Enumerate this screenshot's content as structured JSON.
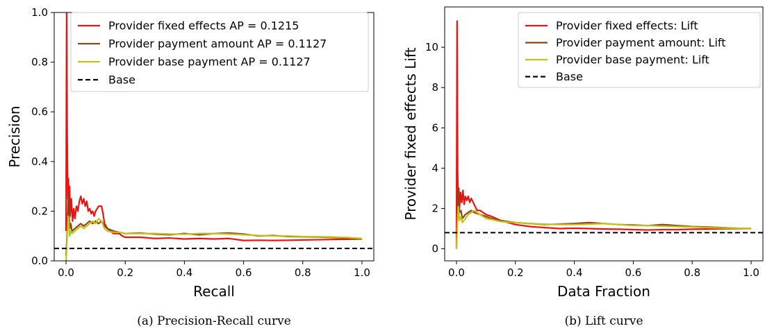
{
  "chart_data": [
    {
      "type": "line",
      "caption": "(a) Precision-Recall curve",
      "xlabel": "Recall",
      "ylabel": "Precision",
      "xlim": [
        -0.04,
        1.04
      ],
      "ylim": [
        0.0,
        1.0
      ],
      "xticks": [
        "0.0",
        "0.2",
        "0.4",
        "0.6",
        "0.8",
        "1.0"
      ],
      "xtick_values": [
        0.0,
        0.2,
        0.4,
        0.6,
        0.8,
        1.0
      ],
      "yticks": [
        "0.0",
        "0.2",
        "0.4",
        "0.6",
        "0.8",
        "1.0"
      ],
      "ytick_values": [
        0.0,
        0.2,
        0.4,
        0.6,
        0.8,
        1.0
      ],
      "legend_position": "top-right",
      "series": [
        {
          "name": "Provider fixed effects AP = 0.1215",
          "color": "#ee1111",
          "x": [
            0.0,
            0.002,
            0.004,
            0.006,
            0.008,
            0.01,
            0.012,
            0.014,
            0.018,
            0.022,
            0.026,
            0.03,
            0.035,
            0.04,
            0.045,
            0.05,
            0.055,
            0.06,
            0.065,
            0.07,
            0.075,
            0.08,
            0.085,
            0.09,
            0.095,
            0.1,
            0.105,
            0.11,
            0.115,
            0.12,
            0.125,
            0.13,
            0.14,
            0.15,
            0.16,
            0.18,
            0.19,
            0.2,
            0.25,
            0.3,
            0.35,
            0.4,
            0.45,
            0.5,
            0.55,
            0.6,
            0.65,
            0.7,
            0.75,
            0.8,
            0.85,
            0.9,
            0.95,
            1.0
          ],
          "y": [
            0.12,
            1.0,
            0.5,
            0.25,
            0.33,
            0.2,
            0.3,
            0.18,
            0.25,
            0.16,
            0.21,
            0.17,
            0.22,
            0.2,
            0.24,
            0.26,
            0.23,
            0.25,
            0.22,
            0.24,
            0.2,
            0.21,
            0.19,
            0.2,
            0.18,
            0.2,
            0.21,
            0.22,
            0.22,
            0.22,
            0.19,
            0.15,
            0.13,
            0.12,
            0.11,
            0.11,
            0.1,
            0.095,
            0.095,
            0.09,
            0.092,
            0.088,
            0.09,
            0.088,
            0.09,
            0.082,
            0.083,
            0.082,
            0.083,
            0.084,
            0.085,
            0.086,
            0.087,
            0.088
          ]
        },
        {
          "name": "Provider payment amount AP = 0.1127",
          "color": "#8b4513",
          "x": [
            0.0,
            0.004,
            0.008,
            0.012,
            0.016,
            0.02,
            0.03,
            0.04,
            0.05,
            0.06,
            0.07,
            0.08,
            0.09,
            0.1,
            0.11,
            0.12,
            0.13,
            0.14,
            0.16,
            0.18,
            0.2,
            0.25,
            0.3,
            0.35,
            0.4,
            0.45,
            0.5,
            0.55,
            0.6,
            0.65,
            0.7,
            0.75,
            0.8,
            0.85,
            0.9,
            0.95,
            1.0
          ],
          "y": [
            0.02,
            0.12,
            0.27,
            0.13,
            0.15,
            0.12,
            0.13,
            0.14,
            0.15,
            0.14,
            0.15,
            0.16,
            0.15,
            0.16,
            0.15,
            0.16,
            0.14,
            0.13,
            0.12,
            0.115,
            0.11,
            0.112,
            0.108,
            0.105,
            0.11,
            0.105,
            0.11,
            0.112,
            0.108,
            0.1,
            0.102,
            0.098,
            0.097,
            0.096,
            0.094,
            0.092,
            0.088
          ]
        },
        {
          "name": "Provider base payment AP = 0.1127",
          "color": "#c2c21a",
          "x": [
            0.0,
            0.004,
            0.008,
            0.012,
            0.016,
            0.02,
            0.03,
            0.04,
            0.05,
            0.06,
            0.07,
            0.08,
            0.09,
            0.1,
            0.11,
            0.12,
            0.13,
            0.14,
            0.16,
            0.18,
            0.2,
            0.25,
            0.3,
            0.35,
            0.4,
            0.45,
            0.5,
            0.55,
            0.6,
            0.65,
            0.7,
            0.75,
            0.8,
            0.85,
            0.9,
            0.95,
            1.0
          ],
          "y": [
            0.0,
            0.1,
            0.18,
            0.1,
            0.12,
            0.11,
            0.12,
            0.13,
            0.14,
            0.13,
            0.14,
            0.15,
            0.16,
            0.15,
            0.17,
            0.16,
            0.13,
            0.12,
            0.115,
            0.115,
            0.11,
            0.11,
            0.11,
            0.108,
            0.107,
            0.11,
            0.11,
            0.108,
            0.105,
            0.102,
            0.1,
            0.1,
            0.098,
            0.097,
            0.096,
            0.094,
            0.09
          ]
        },
        {
          "name": "Base",
          "color": "#000000",
          "dashed": true,
          "x": [
            -0.04,
            1.04
          ],
          "y": [
            0.05,
            0.05
          ]
        }
      ]
    },
    {
      "type": "line",
      "caption": "(b) Lift curve",
      "xlabel": "Data Fraction",
      "ylabel": "Provider fixed effects Lift",
      "xlim": [
        -0.04,
        1.04
      ],
      "ylim": [
        -0.6,
        12.0
      ],
      "xticks": [
        "0.0",
        "0.2",
        "0.4",
        "0.6",
        "0.8",
        "1.0"
      ],
      "xtick_values": [
        0.0,
        0.2,
        0.4,
        0.6,
        0.8,
        1.0
      ],
      "yticks": [
        "0",
        "2",
        "4",
        "6",
        "8",
        "10"
      ],
      "ytick_values": [
        0,
        2,
        4,
        6,
        8,
        10
      ],
      "legend_position": "top-right",
      "series": [
        {
          "name": "Provider fixed effects: Lift",
          "color": "#ee1111",
          "x": [
            0.0,
            0.002,
            0.004,
            0.006,
            0.008,
            0.01,
            0.014,
            0.018,
            0.022,
            0.026,
            0.03,
            0.035,
            0.04,
            0.045,
            0.05,
            0.06,
            0.07,
            0.08,
            0.1,
            0.12,
            0.15,
            0.2,
            0.25,
            0.3,
            0.35,
            0.4,
            0.45,
            0.5,
            0.55,
            0.6,
            0.65,
            0.7,
            0.75,
            0.8,
            0.85,
            0.9,
            0.95,
            1.0
          ],
          "y": [
            0.0,
            11.3,
            3.8,
            2.2,
            3.0,
            2.0,
            2.8,
            2.3,
            2.9,
            2.2,
            2.6,
            2.4,
            2.6,
            2.3,
            2.5,
            2.2,
            1.9,
            1.9,
            1.7,
            1.6,
            1.4,
            1.2,
            1.1,
            1.05,
            1.0,
            1.02,
            1.0,
            0.98,
            0.97,
            0.95,
            0.93,
            0.95,
            0.95,
            0.97,
            0.98,
            0.99,
            1.0,
            1.0
          ]
        },
        {
          "name": "Provider payment amount: Lift",
          "color": "#8b4513",
          "x": [
            0.0,
            0.003,
            0.006,
            0.01,
            0.015,
            0.02,
            0.03,
            0.04,
            0.05,
            0.06,
            0.08,
            0.1,
            0.12,
            0.15,
            0.2,
            0.25,
            0.3,
            0.35,
            0.4,
            0.45,
            0.5,
            0.55,
            0.6,
            0.65,
            0.7,
            0.75,
            0.8,
            0.85,
            0.9,
            0.95,
            1.0
          ],
          "y": [
            0.0,
            1.5,
            3.0,
            1.8,
            1.9,
            1.5,
            1.7,
            1.8,
            1.9,
            1.8,
            1.7,
            1.6,
            1.5,
            1.4,
            1.3,
            1.25,
            1.2,
            1.22,
            1.25,
            1.3,
            1.25,
            1.2,
            1.18,
            1.15,
            1.2,
            1.15,
            1.1,
            1.08,
            1.05,
            1.02,
            1.0
          ]
        },
        {
          "name": "Provider base payment: Lift",
          "color": "#c2c21a",
          "x": [
            0.0,
            0.003,
            0.006,
            0.01,
            0.015,
            0.02,
            0.03,
            0.04,
            0.05,
            0.06,
            0.08,
            0.1,
            0.12,
            0.15,
            0.2,
            0.25,
            0.3,
            0.35,
            0.4,
            0.45,
            0.5,
            0.55,
            0.6,
            0.65,
            0.7,
            0.75,
            0.8,
            0.85,
            0.9,
            0.95,
            1.0
          ],
          "y": [
            0.0,
            1.2,
            2.1,
            1.4,
            1.6,
            1.3,
            1.5,
            1.7,
            1.8,
            1.9,
            1.7,
            1.5,
            1.45,
            1.35,
            1.3,
            1.25,
            1.22,
            1.2,
            1.2,
            1.22,
            1.25,
            1.2,
            1.15,
            1.15,
            1.12,
            1.1,
            1.08,
            1.05,
            1.03,
            1.02,
            1.0
          ]
        },
        {
          "name": "Base",
          "color": "#000000",
          "dashed": true,
          "x": [
            -0.04,
            1.04
          ],
          "y": [
            0.8,
            0.8
          ]
        }
      ]
    }
  ]
}
